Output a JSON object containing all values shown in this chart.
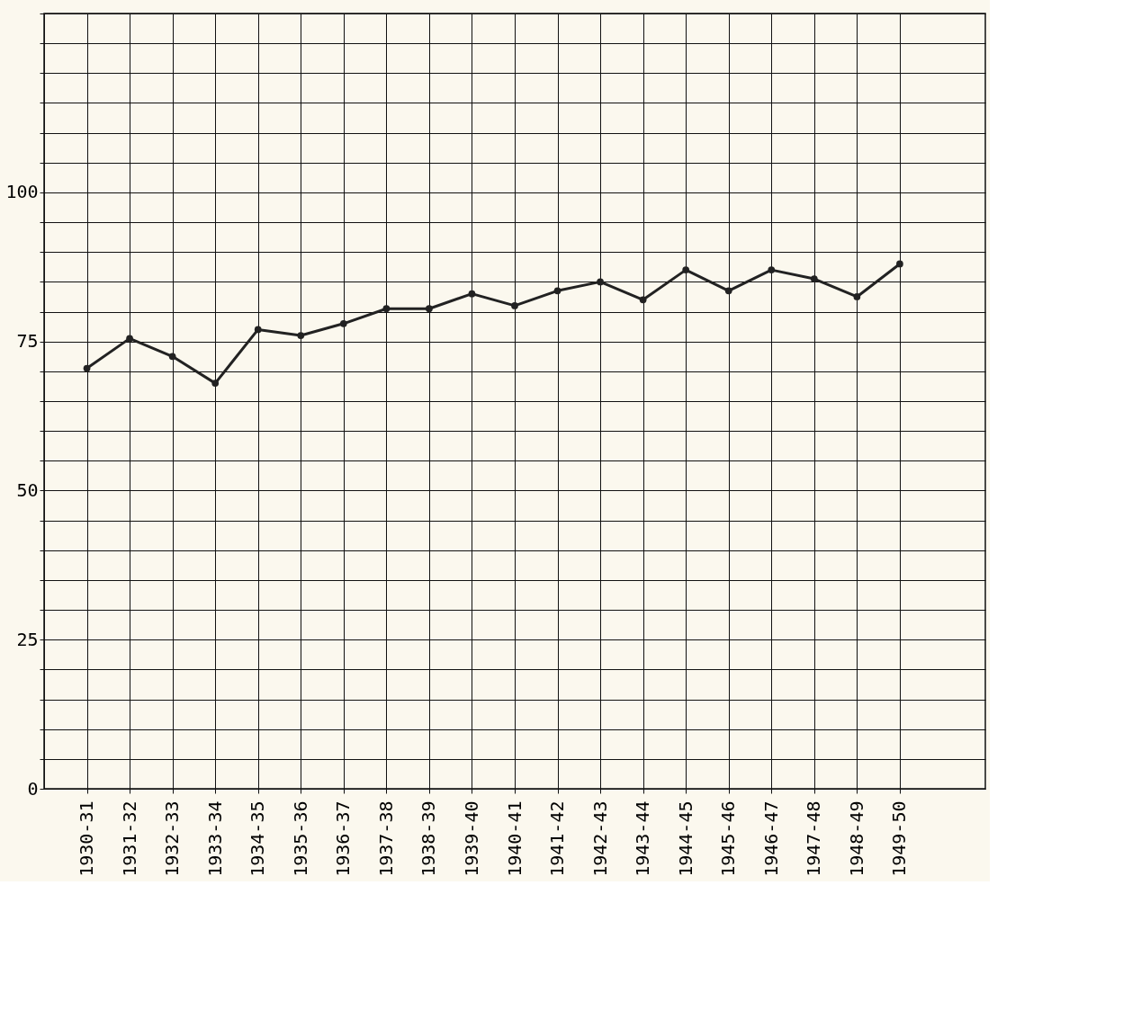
{
  "chart_data": {
    "type": "line",
    "categories": [
      "1930-31",
      "1931-32",
      "1932-33",
      "1933-34",
      "1934-35",
      "1935-36",
      "1936-37",
      "1937-38",
      "1938-39",
      "1939-40",
      "1940-41",
      "1941-42",
      "1942-43",
      "1943-44",
      "1944-45",
      "1945-46",
      "1946-47",
      "1947-48",
      "1948-49",
      "1949-50"
    ],
    "series": [
      {
        "color": "#222222",
        "values": [
          70.5,
          75.5,
          72.5,
          68,
          77,
          76,
          78,
          80.5,
          80.5,
          83,
          81,
          83.5,
          85,
          82,
          87,
          83.5,
          87,
          85.5,
          82.5,
          88
        ]
      }
    ],
    "ylim": [
      0,
      130
    ],
    "yticks": [
      0,
      {
        "value": 5,
        "label": null
      },
      {
        "value": 10,
        "label": null
      },
      {
        "value": 15,
        "label": null
      },
      {
        "value": 20,
        "label": null
      },
      25,
      {
        "value": 30,
        "label": null
      },
      {
        "value": 35,
        "label": null
      },
      {
        "value": 40,
        "label": null
      },
      {
        "value": 45,
        "label": null
      },
      50,
      {
        "value": 55,
        "label": null
      },
      {
        "value": 60,
        "label": null
      },
      {
        "value": 65,
        "label": null
      },
      {
        "value": 70,
        "label": null
      },
      75,
      {
        "value": 80,
        "label": null
      },
      {
        "value": 85,
        "label": null
      },
      {
        "value": 90,
        "label": null
      },
      {
        "value": 95,
        "label": null
      },
      100,
      {
        "value": 105,
        "label": null
      },
      {
        "value": 110,
        "label": null
      },
      {
        "value": 115,
        "label": null
      },
      {
        "value": 120,
        "label": null
      },
      {
        "value": 125,
        "label": null
      },
      {
        "value": 130,
        "label": null
      }
    ],
    "grid": true,
    "marker": "circle",
    "line_style": "solid"
  }
}
